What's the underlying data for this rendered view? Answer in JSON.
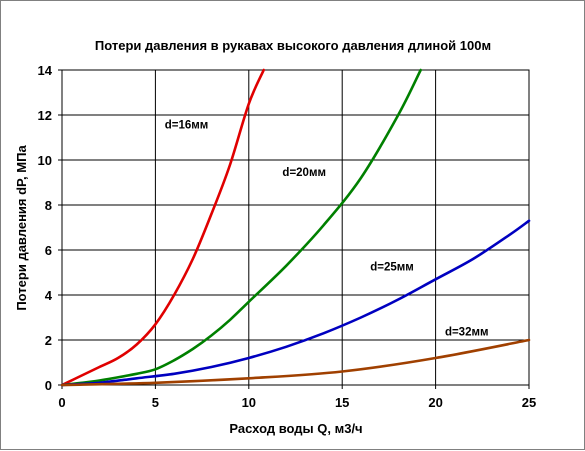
{
  "chart_data": {
    "type": "line",
    "title": "Потери давления в рукавах высокого давления длиной 100м",
    "xlabel": "Расход воды Q, м3/ч",
    "ylabel": "Потери давления  dP, МПа",
    "xlim": [
      0,
      25
    ],
    "ylim": [
      0,
      14
    ],
    "xticks": [
      0,
      5,
      10,
      15,
      20,
      25
    ],
    "yticks": [
      0,
      2,
      4,
      6,
      8,
      10,
      12,
      14
    ],
    "grid": true,
    "series": [
      {
        "name": "d=16мм",
        "color": "#e00000",
        "points": [
          [
            0,
            0
          ],
          [
            1,
            0.4
          ],
          [
            2,
            0.8
          ],
          [
            3,
            1.2
          ],
          [
            4,
            1.8
          ],
          [
            5,
            2.7
          ],
          [
            6,
            4
          ],
          [
            7,
            5.6
          ],
          [
            8,
            7.6
          ],
          [
            9,
            9.8
          ],
          [
            10,
            12.5
          ],
          [
            10.8,
            14
          ]
        ]
      },
      {
        "name": "d=20мм",
        "color": "#008000",
        "points": [
          [
            0,
            0
          ],
          [
            2,
            0.2
          ],
          [
            4,
            0.5
          ],
          [
            5,
            0.7
          ],
          [
            6,
            1.1
          ],
          [
            7,
            1.6
          ],
          [
            8,
            2.2
          ],
          [
            9,
            2.9
          ],
          [
            10,
            3.7
          ],
          [
            12,
            5.3
          ],
          [
            14,
            7.1
          ],
          [
            16,
            9.2
          ],
          [
            18,
            12
          ],
          [
            19.2,
            14
          ]
        ]
      },
      {
        "name": "d=25мм",
        "color": "#0000c0",
        "points": [
          [
            0,
            0
          ],
          [
            2,
            0.1
          ],
          [
            4,
            0.3
          ],
          [
            6,
            0.5
          ],
          [
            8,
            0.8
          ],
          [
            10,
            1.2
          ],
          [
            12,
            1.7
          ],
          [
            14,
            2.3
          ],
          [
            16,
            3
          ],
          [
            18,
            3.8
          ],
          [
            20,
            4.7
          ],
          [
            22,
            5.6
          ],
          [
            24,
            6.7
          ],
          [
            25,
            7.3
          ]
        ]
      },
      {
        "name": "d=32мм",
        "color": "#a04000",
        "points": [
          [
            0,
            0
          ],
          [
            5,
            0.1
          ],
          [
            10,
            0.3
          ],
          [
            15,
            0.6
          ],
          [
            20,
            1.2
          ],
          [
            25,
            2
          ]
        ]
      }
    ],
    "labels": [
      {
        "text": "d=16мм",
        "x": 5.5,
        "y": 11.4
      },
      {
        "text": "d=20мм",
        "x": 11.8,
        "y": 9.3
      },
      {
        "text": "d=25мм",
        "x": 16.5,
        "y": 5.1
      },
      {
        "text": "d=32мм",
        "x": 20.5,
        "y": 2.2
      }
    ]
  }
}
